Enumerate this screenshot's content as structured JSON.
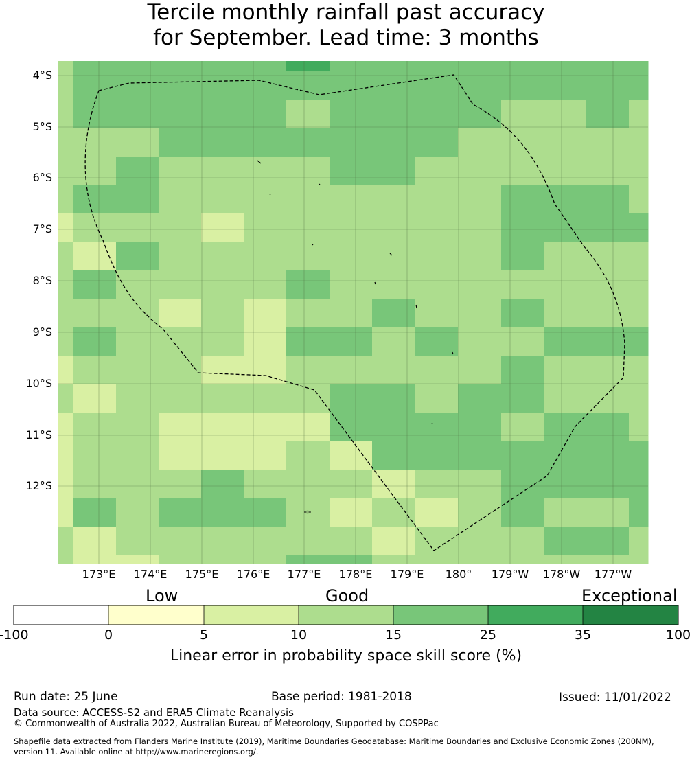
{
  "title": {
    "line1": "Tercile monthly rainfall past accuracy",
    "line2": "for September. Lead time: 3 months"
  },
  "map": {
    "lat_labels": [
      "4°S",
      "5°S",
      "6°S",
      "7°S",
      "8°S",
      "9°S",
      "10°S",
      "11°S",
      "12°S"
    ],
    "lon_labels": [
      "173°E",
      "174°E",
      "175°E",
      "176°E",
      "177°E",
      "178°E",
      "179°E",
      "180°",
      "179°W",
      "178°W",
      "177°W"
    ],
    "palette": [
      "#ffffff",
      "#ffffcc",
      "#d9f0a3",
      "#addd8e",
      "#78c679",
      "#41ab5d",
      "#238443"
    ],
    "grid_classes": [
      "24444444455444444444444444",
      "24444444444444444444444444",
      "24444444443344444444334443",
      "23333344444444444444334443",
      "23333444444444344444333333",
      "23344444344444444443333333",
      "23344444333444444443333333",
      "23344333333333333333333333",
      "24444333333333333333333333",
      "24444333333333333333333333",
      "23333333333333333333333333",
      "23333333333333333333333333",
      "23333333333333333333333333",
      "23333333333333333333333333",
      "23333333333333333333444444",
      "24444333333333333333444443",
      "33344333332233333333444444",
      "33344333333333333333444444",
      "33222444333333333333444444",
      "33222444333333333333444444",
      "24433333333333333333333333",
      "24433333333333333333333333",
      "34433333333333333333444443",
      "34433333333333333333333333",
      "33333333333333333333444333",
      "33333333333333333333444333",
      "33333333333333333333444333",
      "33333332223333333333333333",
      "33333332223333333333333333",
      "33333333333333333333333333",
      "33333333333333333333333333",
      "33333333332233333333333333",
      "33333333332233333333333333",
      "33333333333333333333333333",
      "33333333333333333333333333",
      "33333333333333333333333333",
      "33333333334444333344433333",
      "33333333334444333344433333",
      "33444433333333333334444333",
      "33444433333333333333444433",
      "33333333333333333333333333",
      "23333333332233333333333333",
      "23333333332233333333333333",
      "23333333332223333333333333",
      "23333333332223333333333333",
      "23333333333333333444444333",
      "33333333333333333444444333",
      "33333333333333333444444333",
      "33333333333333333444444333",
      "33333333333333333444444333",
      "33333333333333333444444333",
      "33333333333333333444444333",
      "33333333333333333444444333",
      "33332222233333333444444333",
      "33332222233333333444444333",
      "33332222233333333444444333",
      "33332222233333333444444333",
      "33332222233333333444444333",
      "33332222233333333444444333",
      "33333333333333333444444333",
      "33333333333333333444444333",
      "33333333333333333444444333",
      "33333333333333333444444333",
      "33333333333333333444444333",
      "33333333333333333333333333",
      "33333333333333333333333333",
      "33333333333333333333333333",
      "33333333333333333333333333",
      "33333333333333333333333333",
      "33333333333333333333333333"
    ],
    "cell_rows": [
      "44445444444444",
      "34444444444444",
      "34444443444423",
      "33333444444333",
      "34333444333333",
      "33433444433333",
      "24433333333344",
      "23433333333334",
      "23333333333344",
      "23323333334333",
      "33333333433333",
      "33332233333333",
      "23333333333333",
      "33333333333443",
      "34433333334444"
    ]
  },
  "colorbar": {
    "categories": [
      "Low",
      "Good",
      "Exceptional"
    ],
    "ticks": [
      "-100",
      "0",
      "5",
      "10",
      "15",
      "25",
      "35",
      "100"
    ],
    "colors": [
      "#ffffff",
      "#ffffcc",
      "#d9f0a3",
      "#addd8e",
      "#78c679",
      "#41ab5d",
      "#238443"
    ],
    "title": "Linear error in probability space skill score (%)"
  },
  "footer": {
    "run_date": "Run date: 25 June",
    "base_period": "Base period: 1981-2018",
    "issued": "Issued: 11/01/2022",
    "source": "Data source: ACCESS-S2 and ERA5 Climate Reanalysis",
    "copyright": "© Commonwealth of Australia 2022, Australian Bureau of Meteorology, Supported by COSPPac",
    "shapefile_line1": "Shapefile data extracted from Flanders Marine Institute (2019), Maritime Boundaries Geodatabase: Maritime Boundaries and Exclusive Economic Zones (200NM),",
    "shapefile_line2": "version 11. Available online at http://www.marineregions.org/."
  }
}
